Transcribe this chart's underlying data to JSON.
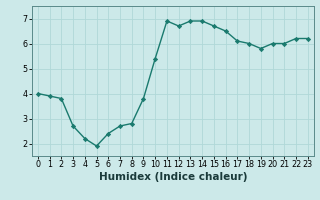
{
  "x": [
    0,
    1,
    2,
    3,
    4,
    5,
    6,
    7,
    8,
    9,
    10,
    11,
    12,
    13,
    14,
    15,
    16,
    17,
    18,
    19,
    20,
    21,
    22,
    23
  ],
  "y": [
    4.0,
    3.9,
    3.8,
    2.7,
    2.2,
    1.9,
    2.4,
    2.7,
    2.8,
    3.8,
    5.4,
    6.9,
    6.7,
    6.9,
    6.9,
    6.7,
    6.5,
    6.1,
    6.0,
    5.8,
    6.0,
    6.0,
    6.2,
    6.2
  ],
  "line_color": "#1a7a6e",
  "marker": "D",
  "markersize": 2.2,
  "linewidth": 1.0,
  "xlabel": "Humidex (Indice chaleur)",
  "xlabel_fontsize": 7.5,
  "bg_color": "#cce9e9",
  "grid_color": "#b0d8d8",
  "ylim": [
    1.5,
    7.5
  ],
  "xlim": [
    -0.5,
    23.5
  ],
  "yticks": [
    2,
    3,
    4,
    5,
    6,
    7
  ],
  "xtick_labels": [
    "0",
    "1",
    "2",
    "3",
    "4",
    "5",
    "6",
    "7",
    "8",
    "9",
    "10",
    "11",
    "12",
    "13",
    "14",
    "15",
    "16",
    "17",
    "18",
    "19",
    "20",
    "21",
    "22",
    "23"
  ],
  "tick_fontsize": 5.8,
  "spine_color": "#5a8a8a"
}
